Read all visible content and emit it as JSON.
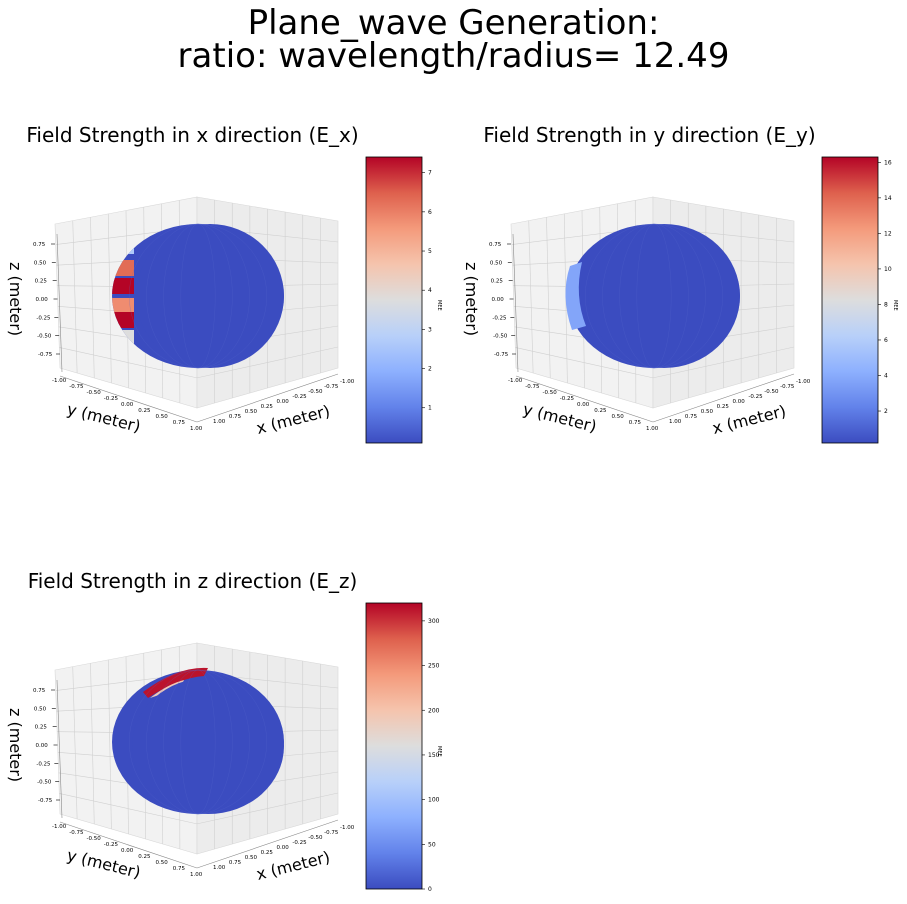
{
  "suptitle": {
    "line1": "Plane_wave Generation:",
    "line2": "ratio: wavelength/radius= 12.49"
  },
  "chart_data": [
    {
      "type": "surface3d",
      "title": "Field Strength in x direction (E_x)",
      "xlabel": "x (meter)",
      "ylabel": "y (meter)",
      "zlabel": "z (meter)",
      "x_ticks": [
        "-1.00",
        "-0.75",
        "-0.50",
        "-0.25",
        "0.00",
        "0.25",
        "0.50",
        "0.75",
        "1.00"
      ],
      "y_ticks": [
        "-1.00",
        "-0.75",
        "-0.50",
        "-0.25",
        "0.00",
        "0.25",
        "0.50",
        "0.75",
        "1.00"
      ],
      "z_ticks": [
        "0.75",
        "0.50",
        "0.25",
        "0.00",
        "-0.25",
        "-0.50",
        "-0.75"
      ],
      "colorbar": {
        "label": "MEE",
        "ticks": [
          "1",
          "2",
          "3",
          "4",
          "5",
          "6",
          "7"
        ],
        "vmin": 0.1,
        "vmax": 7.4,
        "tick_values": [
          1,
          2,
          3,
          4,
          5,
          6,
          7
        ]
      },
      "hot_side": "left",
      "colormap": "coolwarm"
    },
    {
      "type": "surface3d",
      "title": "Field Strength in y direction (E_y)",
      "xlabel": "x (meter)",
      "ylabel": "y (meter)",
      "zlabel": "z (meter)",
      "x_ticks": [
        "-1.00",
        "-0.75",
        "-0.50",
        "-0.25",
        "0.00",
        "0.25",
        "0.50",
        "0.75",
        "1.00"
      ],
      "y_ticks": [
        "-1.00",
        "-0.75",
        "-0.50",
        "-0.25",
        "0.00",
        "0.25",
        "0.50",
        "0.75",
        "1.00"
      ],
      "z_ticks": [
        "0.75",
        "0.50",
        "0.25",
        "0.00",
        "-0.25",
        "-0.50",
        "-0.75"
      ],
      "colorbar": {
        "label": "MEE",
        "ticks": [
          "2",
          "4",
          "6",
          "8",
          "10",
          "12",
          "14",
          "16"
        ],
        "vmin": 0.2,
        "vmax": 16.3,
        "tick_values": [
          2,
          4,
          6,
          8,
          10,
          12,
          14,
          16
        ]
      },
      "hot_side": "left-faint",
      "colormap": "coolwarm"
    },
    {
      "type": "surface3d",
      "title": "Field Strength in z direction (E_z)",
      "xlabel": "x (meter)",
      "ylabel": "y (meter)",
      "zlabel": "z (meter)",
      "x_ticks": [
        "-1.00",
        "-0.75",
        "-0.50",
        "-0.25",
        "0.00",
        "0.25",
        "0.50",
        "0.75",
        "1.00"
      ],
      "y_ticks": [
        "-1.00",
        "-0.75",
        "-0.50",
        "-0.25",
        "0.00",
        "0.25",
        "0.50",
        "0.75",
        "1.00"
      ],
      "z_ticks": [
        "0.75",
        "0.50",
        "0.25",
        "0.00",
        "-0.25",
        "-0.50",
        "-0.75"
      ],
      "colorbar": {
        "label": "MEE",
        "ticks": [
          "0",
          "50",
          "100",
          "150",
          "200",
          "250",
          "300"
        ],
        "vmin": 0,
        "vmax": 320,
        "tick_values": [
          0,
          50,
          100,
          150,
          200,
          250,
          300
        ]
      },
      "hot_side": "top",
      "colormap": "coolwarm"
    }
  ]
}
